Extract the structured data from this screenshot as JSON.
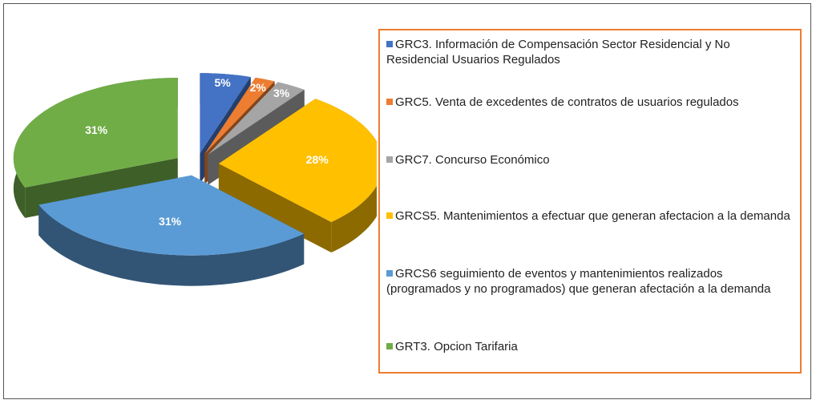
{
  "chart_data": {
    "type": "pie",
    "categories": [
      "GRC3. Información de Compensación Sector Residencial y No Residencial Usuarios Regulados",
      "GRC5. Venta de excedentes de contratos de usuarios regulados",
      "GRC7. Concurso Económico",
      "GRCS5. Mantenimientos a efectuar que generan afectacion a la demanda",
      "GRCS6 seguimiento de eventos y mantenimientos realizados (programados y no programados) que generan afectación a la demanda",
      "GRT3. Opcion Tarifaria"
    ],
    "values": [
      5,
      2,
      3,
      28,
      31,
      31
    ],
    "value_labels": [
      "5%",
      "2%",
      "3%",
      "28%",
      "31%",
      "31%"
    ],
    "colors": [
      "#4472c4",
      "#ed7d31",
      "#a5a5a5",
      "#ffc000",
      "#5b9bd5",
      "#70ad47"
    ],
    "legend": "right"
  }
}
